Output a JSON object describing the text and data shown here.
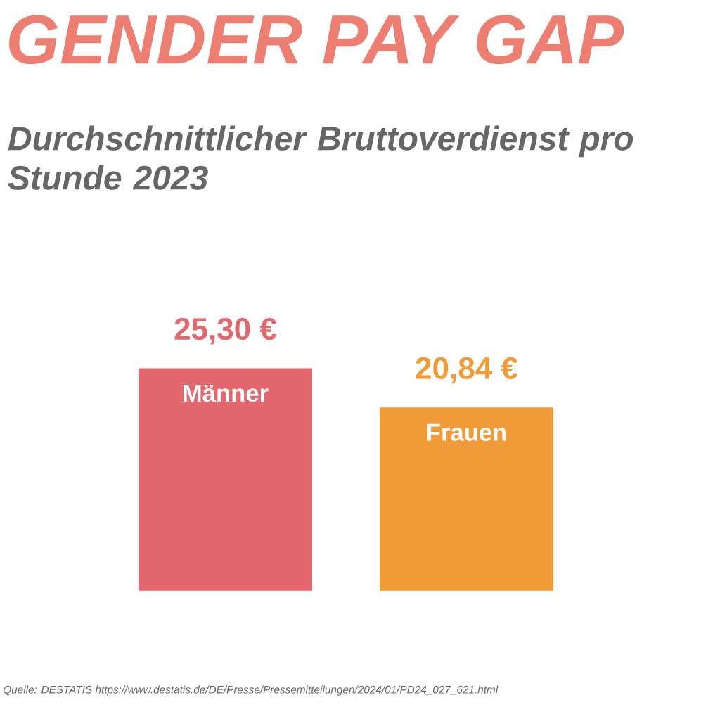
{
  "chart_data": {
    "type": "bar",
    "title": "GENDER PAY GAP",
    "subtitle": "Durchschnittlicher Bruttoverdienst pro Stunde 2023",
    "categories": [
      "Männer",
      "Frauen"
    ],
    "values": [
      25.3,
      20.84
    ],
    "colors": [
      "#e3686e",
      "#f09a38"
    ],
    "value_labels": [
      "25,30 €",
      "20,84 €"
    ],
    "annotations": [
      "Quelle: DESTATIS https://www.destatis.de/DE/Presse/Pressemitteilungen/2024/01/PD24_027_621.html"
    ]
  }
}
